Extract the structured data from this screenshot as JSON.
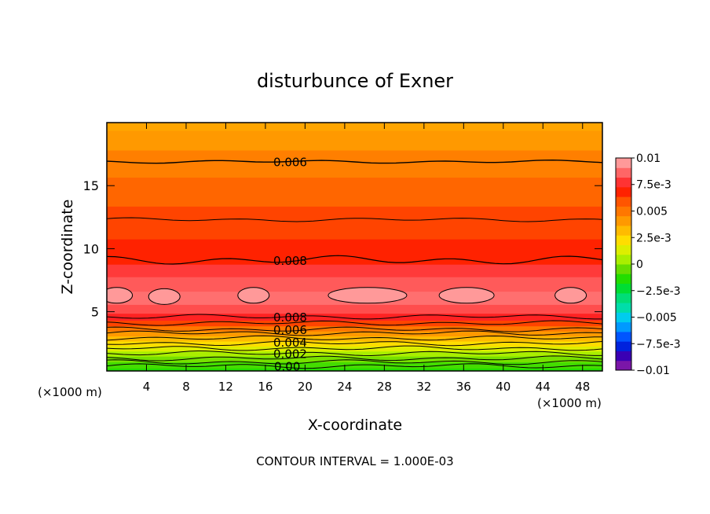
{
  "chart_data": {
    "type": "heatmap",
    "title": "disturbunce of Exner",
    "xlabel": "X-coordinate",
    "ylabel": "Z-coordinate",
    "x_unit": "(×1000 m)",
    "x_unit_right": "(×1000 m)",
    "footer": "CONTOUR INTERVAL = 1.000E-03",
    "xlim": [
      0,
      50
    ],
    "ylim": [
      0.3,
      20
    ],
    "x_ticks": [
      4,
      8,
      12,
      16,
      20,
      24,
      28,
      32,
      36,
      40,
      44,
      48
    ],
    "x_tick_labels": [
      "4",
      "8",
      "12",
      "16",
      "20",
      "24",
      "28",
      "32",
      "36",
      "40",
      "44",
      "48"
    ],
    "y_ticks": [
      5,
      10,
      15
    ],
    "y_tick_labels": [
      "5",
      "10",
      "15"
    ],
    "colorbar": {
      "range": [
        -0.01,
        0.01
      ],
      "labels": [
        "0.01",
        "7.5e-3",
        "0.005",
        "2.5e-3",
        "0",
        "−2.5e-3",
        "−0.005",
        "−7.5e-3",
        "−0.01"
      ],
      "label_values": [
        0.01,
        0.0075,
        0.005,
        0.0025,
        0,
        -0.0025,
        -0.005,
        -0.0075,
        -0.01
      ],
      "colors": [
        "#7a16a8",
        "#3a00b4",
        "#0022dd",
        "#0055ff",
        "#0099ff",
        "#00ccee",
        "#00ddaa",
        "#00dd77",
        "#00dd33",
        "#22dd00",
        "#66dd00",
        "#aaee00",
        "#ddee00",
        "#ffdd00",
        "#ffbb00",
        "#ff9900",
        "#ff7700",
        "#ff5500",
        "#ff2200",
        "#ff3333",
        "#ff6666",
        "#ff9999"
      ]
    },
    "contour_interval": 0.001,
    "contour_labels": [
      {
        "text": "0.006",
        "x": 18.5,
        "z": 16.9
      },
      {
        "text": "0.008",
        "x": 18.5,
        "z": 9.1
      },
      {
        "text": "0.008",
        "x": 18.5,
        "z": 4.6
      },
      {
        "text": "0.006",
        "x": 18.5,
        "z": 3.6
      },
      {
        "text": "0.004",
        "x": 18.5,
        "z": 2.6
      },
      {
        "text": "0.002",
        "x": 18.5,
        "z": 1.7
      },
      {
        "text": "0.00",
        "x": 18.2,
        "z": 0.7
      }
    ],
    "field_rows": [
      {
        "z": 0.3,
        "value": -0.0012,
        "color": "#22dd00"
      },
      {
        "z": 0.8,
        "value": 0.0001,
        "color": "#44dd00"
      },
      {
        "z": 1.3,
        "value": 0.001,
        "color": "#77e000"
      },
      {
        "z": 1.7,
        "value": 0.0018,
        "color": "#aaee00"
      },
      {
        "z": 2.1,
        "value": 0.0028,
        "color": "#ddee00"
      },
      {
        "z": 2.5,
        "value": 0.0038,
        "color": "#ffdd00"
      },
      {
        "z": 2.9,
        "value": 0.0048,
        "color": "#ffbb00"
      },
      {
        "z": 3.3,
        "value": 0.0058,
        "color": "#ff9900"
      },
      {
        "z": 3.7,
        "value": 0.0066,
        "color": "#ff7700"
      },
      {
        "z": 4.1,
        "value": 0.0075,
        "color": "#ff4400"
      },
      {
        "z": 4.6,
        "value": 0.0082,
        "color": "#ff2222"
      },
      {
        "z": 5.2,
        "value": 0.0088,
        "color": "#ff4d4d"
      },
      {
        "z": 6.0,
        "value": 0.0095,
        "color": "#ff6f6f"
      },
      {
        "z": 7.3,
        "value": 0.009,
        "color": "#ff5a5a"
      },
      {
        "z": 8.3,
        "value": 0.0084,
        "color": "#ff3a3a"
      },
      {
        "z": 9.3,
        "value": 0.0079,
        "color": "#ff2200"
      },
      {
        "z": 12.3,
        "value": 0.0069,
        "color": "#ff4400"
      },
      {
        "z": 14.5,
        "value": 0.0064,
        "color": "#ff6600"
      },
      {
        "z": 16.9,
        "value": 0.0058,
        "color": "#ff7f00"
      },
      {
        "z": 18.8,
        "value": 0.0052,
        "color": "#ff9900"
      },
      {
        "z": 20.0,
        "value": 0.0048,
        "color": "#ffa500"
      }
    ],
    "cells": [
      {
        "x": 1.0,
        "z": 6.3
      },
      {
        "x": 5.8,
        "z": 6.2
      },
      {
        "x": 14.8,
        "z": 6.3
      },
      {
        "x": 26.3,
        "z": 6.3
      },
      {
        "x": 36.3,
        "z": 6.3
      },
      {
        "x": 46.8,
        "z": 6.3
      }
    ]
  }
}
